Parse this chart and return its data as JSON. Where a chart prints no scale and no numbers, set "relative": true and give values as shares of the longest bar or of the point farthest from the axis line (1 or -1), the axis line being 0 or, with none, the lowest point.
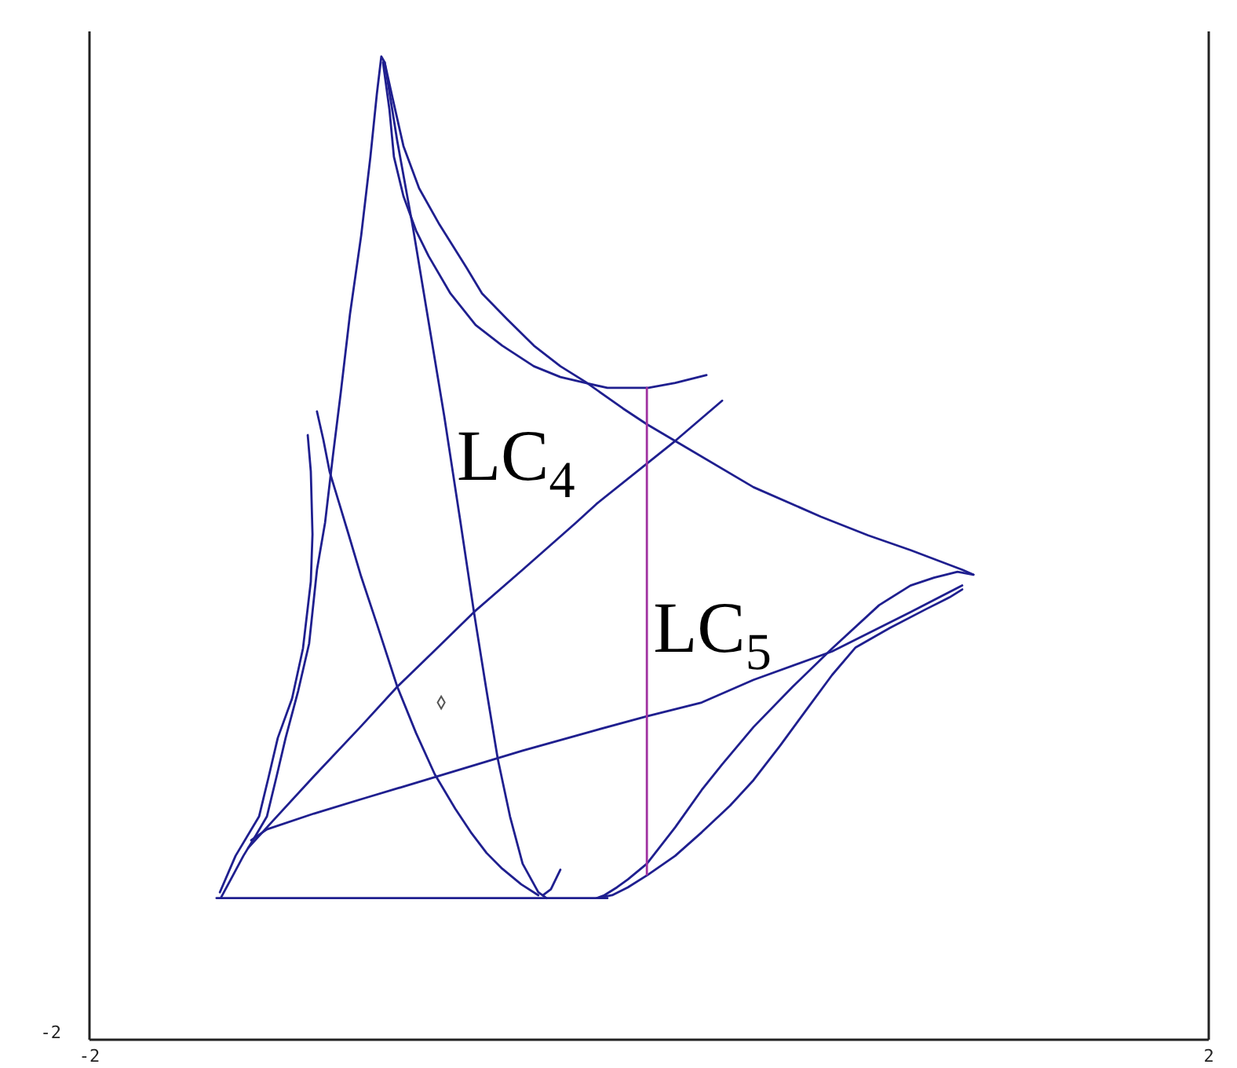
{
  "chart_data": {
    "type": "line",
    "relative": true,
    "xlim": [
      -2,
      2
    ],
    "xticks": [
      -2,
      2
    ],
    "annotations": [
      {
        "text": "LC$_{4}$",
        "x": -0.71,
        "y": 0.589
      },
      {
        "text": "LC$_{5}$",
        "x": -0.008,
        "y": 0.414
      },
      "-2"
    ],
    "series": [
      {
        "color": "#1f1f8f",
        "x": [
          -1.529,
          -1.495,
          -1.45,
          -1.405,
          -1.366,
          -1.332,
          -1.299,
          -1.254,
          -1.215,
          -1.187,
          -1.158,
          -1.13,
          -1.102,
          -1.069,
          -1.029,
          -0.996,
          -0.973,
          -0.957,
          -0.945,
          -0.9,
          -0.844,
          -0.788,
          -0.732,
          -0.676,
          -0.626,
          -0.581,
          -0.541,
          -0.497,
          -0.452,
          -0.396,
          -0.367
        ],
        "values": [
          0.145,
          0.163,
          0.187,
          0.208,
          0.227,
          0.267,
          0.307,
          0.355,
          0.403,
          0.478,
          0.526,
          0.594,
          0.658,
          0.738,
          0.818,
          0.898,
          0.962,
          1,
          0.994,
          0.914,
          0.826,
          0.73,
          0.634,
          0.53,
          0.435,
          0.355,
          0.286,
          0.227,
          0.179,
          0.15,
          0.144
        ]
      },
      {
        "color": "#1f1f8f",
        "x": [
          -1.22,
          -1.209,
          -1.203,
          -1.209,
          -1.237,
          -1.276,
          -1.327,
          -1.36,
          -1.394,
          -1.478,
          -1.534
        ],
        "values": [
          0.615,
          0.578,
          0.514,
          0.466,
          0.398,
          0.347,
          0.307,
          0.267,
          0.227,
          0.187,
          0.15
        ]
      },
      {
        "color": "#1f1f8f",
        "x": [
          -1.187,
          -1.164,
          -1.142,
          -1.108,
          -1.074,
          -1.029,
          -0.973,
          -0.9,
          -0.833,
          -0.766,
          -0.693,
          -0.637,
          -0.581,
          -0.525,
          -0.457,
          -0.396
        ],
        "values": [
          0.639,
          0.61,
          0.578,
          0.546,
          0.514,
          0.471,
          0.423,
          0.359,
          0.312,
          0.27,
          0.235,
          0.211,
          0.19,
          0.174,
          0.158,
          0.147
        ]
      },
      {
        "color": "#1f1f8f",
        "x": [
          -0.951,
          -0.928,
          -0.912,
          -0.878,
          -0.833,
          -0.788,
          -0.71,
          -0.62,
          -0.525,
          -0.412,
          -0.317,
          -0.227,
          -0.149,
          -0.003,
          0.093,
          0.205
        ],
        "values": [
          0.994,
          0.946,
          0.898,
          0.858,
          0.823,
          0.797,
          0.759,
          0.727,
          0.706,
          0.685,
          0.674,
          0.668,
          0.663,
          0.663,
          0.668,
          0.676
        ]
      },
      {
        "color": "#1f1f8f",
        "x": [
          -0.945,
          -0.917,
          -0.878,
          -0.822,
          -0.749,
          -0.654,
          -0.597,
          -0.508,
          -0.412,
          -0.317,
          -0.227,
          -0.093,
          -0.008,
          0.093,
          0.373,
          0.614,
          0.783,
          0.934,
          1.119,
          1.159
        ],
        "values": [
          0.994,
          0.958,
          0.909,
          0.866,
          0.829,
          0.786,
          0.759,
          0.733,
          0.706,
          0.685,
          0.669,
          0.642,
          0.626,
          0.609,
          0.562,
          0.532,
          0.513,
          0.498,
          0.478,
          0.473
        ]
      },
      {
        "color": "#1f1f8f",
        "x": [
          1.159,
          1.102,
          1.018,
          0.934,
          0.822,
          0.654,
          0.513,
          0.373,
          0.261,
          0.188,
          0.093,
          -0.008,
          -0.076,
          -0.115,
          -0.16,
          -0.188,
          -0.132,
          -0.076,
          -0.003,
          0.093,
          0.188,
          0.289,
          0.373,
          0.468,
          0.558,
          0.654,
          0.738,
          0.861,
          0.99,
          1.074,
          1.119
        ],
        "values": [
          0.473,
          0.476,
          0.47,
          0.462,
          0.442,
          0.398,
          0.359,
          0.318,
          0.28,
          0.254,
          0.216,
          0.179,
          0.163,
          0.155,
          0.147,
          0.144,
          0.147,
          0.155,
          0.168,
          0.187,
          0.211,
          0.238,
          0.264,
          0.299,
          0.334,
          0.371,
          0.399,
          0.419,
          0.438,
          0.45,
          0.458
        ]
      },
      {
        "color": "#1f1f8f",
        "x": [
          -1.422,
          -1.366,
          -1.198,
          -1.013,
          -0.766,
          -0.452,
          -0.188,
          -0.008,
          0.188,
          0.373,
          0.654,
          0.934,
          1.119
        ],
        "values": [
          0.203,
          0.214,
          0.23,
          0.246,
          0.267,
          0.294,
          0.315,
          0.329,
          0.343,
          0.366,
          0.395,
          0.435,
          0.462
        ]
      },
      {
        "color": "#1f1f8f",
        "x": [
          -1.433,
          -1.366,
          -1.198,
          -1.029,
          -0.9,
          -0.766,
          -0.626,
          -0.452,
          -0.261,
          -0.188,
          -0.008,
          0.093,
          0.261
        ],
        "values": [
          0.195,
          0.216,
          0.268,
          0.319,
          0.359,
          0.396,
          0.435,
          0.478,
          0.526,
          0.545,
          0.586,
          0.609,
          0.65
        ]
      },
      {
        "color": "#1f1f8f",
        "x": [
          -1.546,
          -0.149
        ],
        "values": [
          0.144,
          0.144
        ]
      },
      {
        "color": "#1f1f8f",
        "x": [
          -0.379,
          -0.351,
          -0.334,
          -0.317
        ],
        "values": [
          0.147,
          0.153,
          0.163,
          0.173
        ]
      },
      {
        "color": "#a030a0",
        "x": [
          -0.008,
          -0.008
        ],
        "values": [
          0.663,
          0.168
        ]
      },
      {
        "type": "scatter",
        "marker": "diamond",
        "color": "#555555",
        "x": [
          -0.743
        ],
        "values": [
          0.343
        ]
      }
    ]
  }
}
